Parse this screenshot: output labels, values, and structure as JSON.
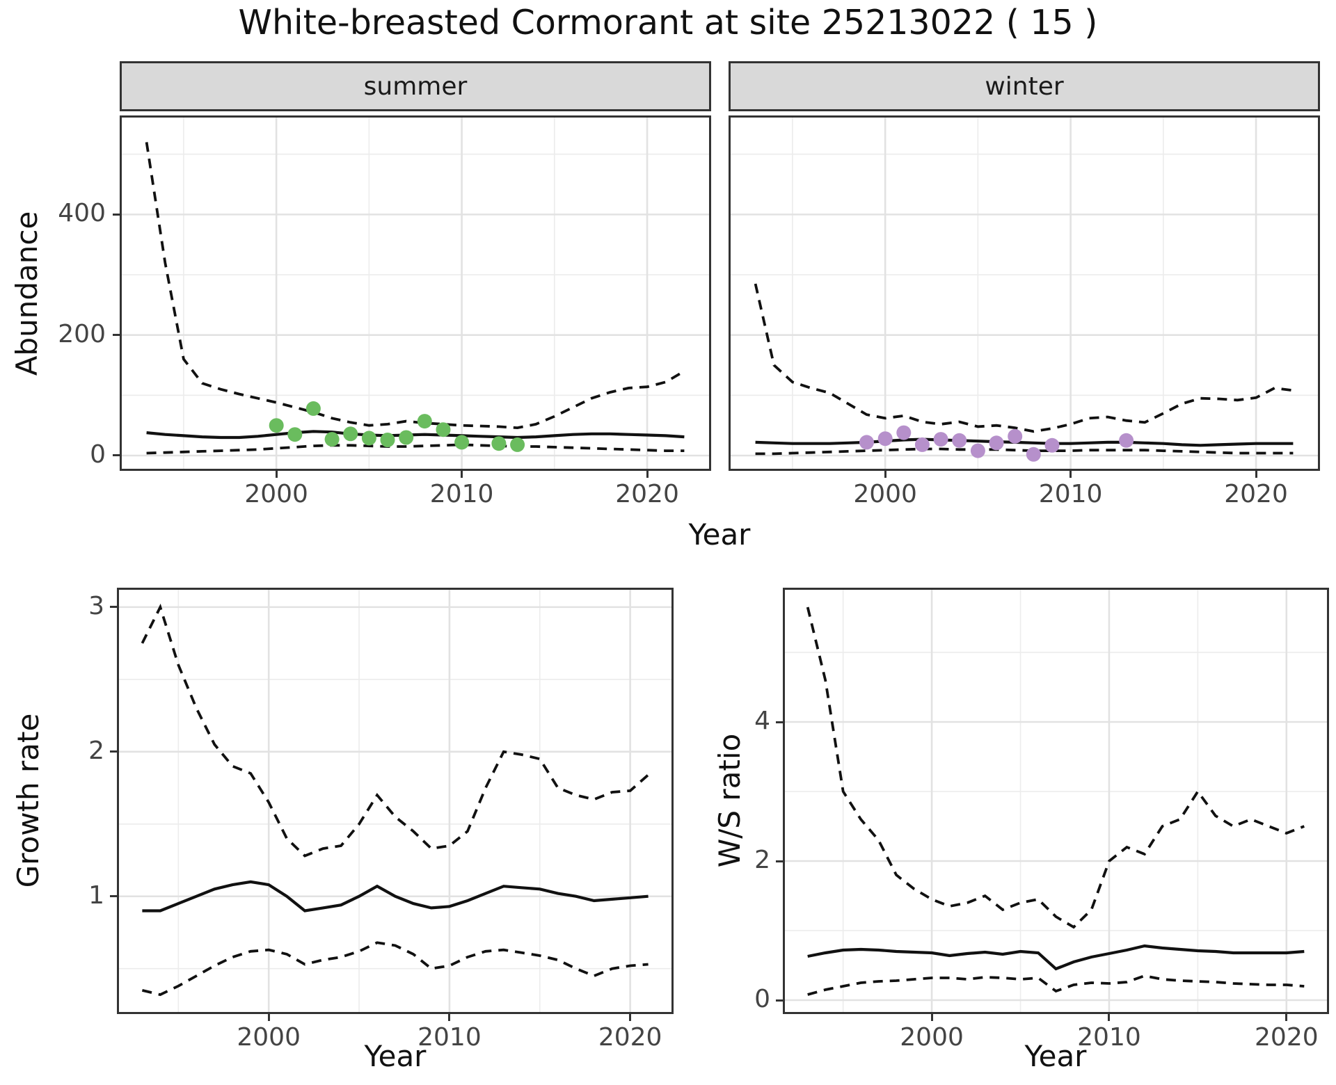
{
  "title": "White-breasted Cormorant at site 25213022 ( 15 )",
  "facets": [
    {
      "label": "summer"
    },
    {
      "label": "winter"
    }
  ],
  "axes": {
    "abundance": {
      "y_title": "Abundance",
      "x_title": "Year",
      "y_ticks": [
        "0",
        "200",
        "400"
      ],
      "x_ticks": [
        "2000",
        "2010",
        "2020"
      ]
    },
    "growth": {
      "y_title": "Growth rate",
      "x_title": "Year",
      "y_ticks": [
        "1",
        "2",
        "3"
      ],
      "x_ticks": [
        "2000",
        "2010",
        "2020"
      ]
    },
    "ws": {
      "y_title": "W/S ratio",
      "x_title": "Year",
      "y_ticks": [
        "0",
        "2",
        "4"
      ],
      "x_ticks": [
        "2000",
        "2010",
        "2020"
      ]
    }
  },
  "colors": {
    "summer_point": "#6abc5e",
    "winter_point": "#b690cb",
    "line": "#111111",
    "grid_major": "#e2e2e2",
    "grid_minor": "#ececec",
    "panel_border": "#333333",
    "strip_bg": "#d9d9d9",
    "tick": "#333333",
    "tick_label": "#444444",
    "text": "#111111"
  },
  "chart_data": [
    {
      "name": "abundance-summer",
      "type": "line",
      "facet": "summer",
      "title": "White-breasted Cormorant abundance, summer",
      "xlabel": "Year",
      "ylabel": "Abundance",
      "x": [
        1993,
        1994,
        1995,
        1996,
        1997,
        1998,
        1999,
        2000,
        2001,
        2002,
        2003,
        2004,
        2005,
        2006,
        2007,
        2008,
        2009,
        2010,
        2011,
        2012,
        2013,
        2014,
        2015,
        2016,
        2017,
        2018,
        2019,
        2020,
        2021,
        2022
      ],
      "series": [
        {
          "name": "upper_ci",
          "style": "dashed",
          "values": [
            520,
            320,
            160,
            120,
            110,
            102,
            95,
            88,
            80,
            72,
            62,
            55,
            50,
            52,
            57,
            54,
            52,
            50,
            49,
            48,
            46,
            52,
            65,
            80,
            95,
            105,
            112,
            114,
            122,
            140
          ]
        },
        {
          "name": "mean",
          "style": "solid",
          "values": [
            38,
            35,
            33,
            31,
            30,
            30,
            32,
            35,
            38,
            40,
            39,
            36,
            34,
            33,
            34,
            35,
            34,
            33,
            32,
            31,
            30,
            31,
            33,
            35,
            36,
            36,
            35,
            34,
            33,
            31
          ]
        },
        {
          "name": "lower_ci",
          "style": "dashed",
          "values": [
            4,
            5,
            6,
            7,
            8,
            9,
            10,
            12,
            14,
            16,
            17,
            17,
            16,
            15,
            15,
            16,
            17,
            18,
            17,
            16,
            15,
            15,
            14,
            13,
            12,
            11,
            10,
            9,
            8,
            8
          ]
        }
      ],
      "points": {
        "color_key": "summer_point",
        "data": [
          [
            2000,
            50
          ],
          [
            2001,
            35
          ],
          [
            2002,
            78
          ],
          [
            2003,
            27
          ],
          [
            2004,
            36
          ],
          [
            2005,
            29
          ],
          [
            2006,
            26
          ],
          [
            2007,
            30
          ],
          [
            2008,
            57
          ],
          [
            2009,
            43
          ],
          [
            2010,
            22
          ],
          [
            2012,
            20
          ],
          [
            2013,
            18
          ]
        ]
      },
      "xlim": [
        1991.55,
        2023.45
      ],
      "ylim": [
        -25.4,
        564.3
      ],
      "x_major": [
        2000,
        2010,
        2020
      ],
      "x_minor": [
        1995,
        2005,
        2015
      ],
      "y_major": [
        0,
        200,
        400
      ],
      "y_minor": [
        100,
        300,
        500
      ]
    },
    {
      "name": "abundance-winter",
      "type": "line",
      "facet": "winter",
      "title": "White-breasted Cormorant abundance, winter",
      "xlabel": "Year",
      "ylabel": "Abundance",
      "x": [
        1993,
        1994,
        1995,
        1996,
        1997,
        1998,
        1999,
        2000,
        2001,
        2002,
        2003,
        2004,
        2005,
        2006,
        2007,
        2008,
        2009,
        2010,
        2011,
        2012,
        2013,
        2014,
        2015,
        2016,
        2017,
        2018,
        2019,
        2020,
        2021,
        2022
      ],
      "series": [
        {
          "name": "upper_ci",
          "style": "dashed",
          "values": [
            285,
            150,
            122,
            112,
            104,
            86,
            68,
            62,
            66,
            56,
            52,
            56,
            48,
            50,
            46,
            40,
            45,
            52,
            62,
            64,
            58,
            55,
            70,
            86,
            95,
            94,
            92,
            96,
            112,
            108
          ]
        },
        {
          "name": "mean",
          "style": "solid",
          "values": [
            22,
            21,
            20,
            20,
            20,
            21,
            22,
            24,
            26,
            27,
            26,
            25,
            24,
            23,
            22,
            21,
            20,
            20,
            21,
            22,
            22,
            21,
            20,
            18,
            17,
            18,
            19,
            20,
            20,
            20
          ]
        },
        {
          "name": "lower_ci",
          "style": "dashed",
          "values": [
            3,
            3,
            4,
            5,
            6,
            7,
            8,
            9,
            10,
            11,
            11,
            10,
            10,
            10,
            9,
            8,
            8,
            8,
            9,
            9,
            9,
            9,
            8,
            7,
            6,
            5,
            4,
            4,
            4,
            4
          ]
        }
      ],
      "points": {
        "color_key": "winter_point",
        "data": [
          [
            1999,
            22
          ],
          [
            2000,
            28
          ],
          [
            2001,
            38
          ],
          [
            2002,
            18
          ],
          [
            2003,
            27
          ],
          [
            2004,
            25
          ],
          [
            2005,
            8
          ],
          [
            2006,
            21
          ],
          [
            2007,
            32
          ],
          [
            2008,
            2
          ],
          [
            2009,
            17
          ],
          [
            2013,
            25
          ]
        ]
      },
      "xlim": [
        1991.55,
        2023.45
      ],
      "ylim": [
        -25.4,
        564.3
      ],
      "x_major": [
        2000,
        2010,
        2020
      ],
      "x_minor": [
        1995,
        2005,
        2015
      ],
      "y_major": [
        0,
        200,
        400
      ],
      "y_minor": [
        100,
        300,
        500
      ]
    },
    {
      "name": "growth-rate",
      "type": "line",
      "title": "Growth rate",
      "xlabel": "Year",
      "ylabel": "Growth rate",
      "x": [
        1993,
        1994,
        1995,
        1996,
        1997,
        1998,
        1999,
        2000,
        2001,
        2002,
        2003,
        2004,
        2005,
        2006,
        2007,
        2008,
        2009,
        2010,
        2011,
        2012,
        2013,
        2014,
        2015,
        2016,
        2017,
        2018,
        2019,
        2020,
        2021
      ],
      "series": [
        {
          "name": "upper_ci",
          "style": "dashed",
          "values": [
            2.75,
            3.0,
            2.6,
            2.3,
            2.05,
            1.9,
            1.85,
            1.65,
            1.4,
            1.28,
            1.33,
            1.35,
            1.5,
            1.7,
            1.55,
            1.45,
            1.33,
            1.35,
            1.45,
            1.75,
            2.0,
            1.98,
            1.95,
            1.75,
            1.7,
            1.67,
            1.72,
            1.73,
            1.84
          ]
        },
        {
          "name": "mean",
          "style": "solid",
          "values": [
            0.9,
            0.9,
            0.95,
            1.0,
            1.05,
            1.08,
            1.1,
            1.08,
            1.0,
            0.9,
            0.92,
            0.94,
            1.0,
            1.07,
            1.0,
            0.95,
            0.92,
            0.93,
            0.97,
            1.02,
            1.07,
            1.06,
            1.05,
            1.02,
            1.0,
            0.97,
            0.98,
            0.99,
            1.0
          ]
        },
        {
          "name": "lower_ci",
          "style": "dashed",
          "values": [
            0.35,
            0.32,
            0.38,
            0.45,
            0.52,
            0.58,
            0.62,
            0.63,
            0.6,
            0.53,
            0.56,
            0.58,
            0.62,
            0.68,
            0.66,
            0.6,
            0.5,
            0.52,
            0.58,
            0.62,
            0.63,
            0.61,
            0.59,
            0.56,
            0.5,
            0.45,
            0.5,
            0.52,
            0.53
          ]
        }
      ],
      "points": null,
      "xlim": [
        1991.6,
        2022.4
      ],
      "ylim": [
        0.186,
        3.134
      ],
      "x_major": [
        2000,
        2010,
        2020
      ],
      "x_minor": [
        1995,
        2005,
        2015
      ],
      "y_major": [
        1,
        2,
        3
      ],
      "y_minor": [
        0.5,
        1.5,
        2.5
      ]
    },
    {
      "name": "ws-ratio",
      "type": "line",
      "title": "Winter/Summer ratio",
      "xlabel": "Year",
      "ylabel": "W/S ratio",
      "x": [
        1993,
        1994,
        1995,
        1996,
        1997,
        1998,
        1999,
        2000,
        2001,
        2002,
        2003,
        2004,
        2005,
        2006,
        2007,
        2008,
        2009,
        2010,
        2011,
        2012,
        2013,
        2014,
        2015,
        2016,
        2017,
        2018,
        2019,
        2020,
        2021
      ],
      "series": [
        {
          "name": "upper_ci",
          "style": "dashed",
          "values": [
            5.65,
            4.6,
            3.0,
            2.6,
            2.3,
            1.8,
            1.6,
            1.45,
            1.35,
            1.4,
            1.5,
            1.3,
            1.4,
            1.45,
            1.2,
            1.05,
            1.3,
            2.0,
            2.2,
            2.1,
            2.5,
            2.6,
            3.0,
            2.65,
            2.5,
            2.6,
            2.5,
            2.4,
            2.5
          ]
        },
        {
          "name": "mean",
          "style": "solid",
          "values": [
            0.63,
            0.68,
            0.72,
            0.73,
            0.72,
            0.7,
            0.69,
            0.68,
            0.64,
            0.67,
            0.69,
            0.66,
            0.7,
            0.68,
            0.45,
            0.55,
            0.62,
            0.67,
            0.72,
            0.78,
            0.75,
            0.73,
            0.71,
            0.7,
            0.68,
            0.68,
            0.68,
            0.68,
            0.7
          ]
        },
        {
          "name": "lower_ci",
          "style": "dashed",
          "values": [
            0.08,
            0.15,
            0.2,
            0.25,
            0.27,
            0.28,
            0.3,
            0.32,
            0.32,
            0.3,
            0.33,
            0.32,
            0.3,
            0.32,
            0.13,
            0.22,
            0.25,
            0.24,
            0.26,
            0.35,
            0.3,
            0.28,
            0.27,
            0.26,
            0.24,
            0.23,
            0.22,
            0.22,
            0.2
          ]
        }
      ],
      "points": null,
      "xlim": [
        1991.6,
        2022.4
      ],
      "ylim": [
        -0.2,
        5.93
      ],
      "x_major": [
        2000,
        2010,
        2020
      ],
      "x_minor": [
        1995,
        2005,
        2015
      ],
      "y_major": [
        0,
        2,
        4
      ],
      "y_minor": [
        1,
        3,
        5
      ]
    }
  ]
}
